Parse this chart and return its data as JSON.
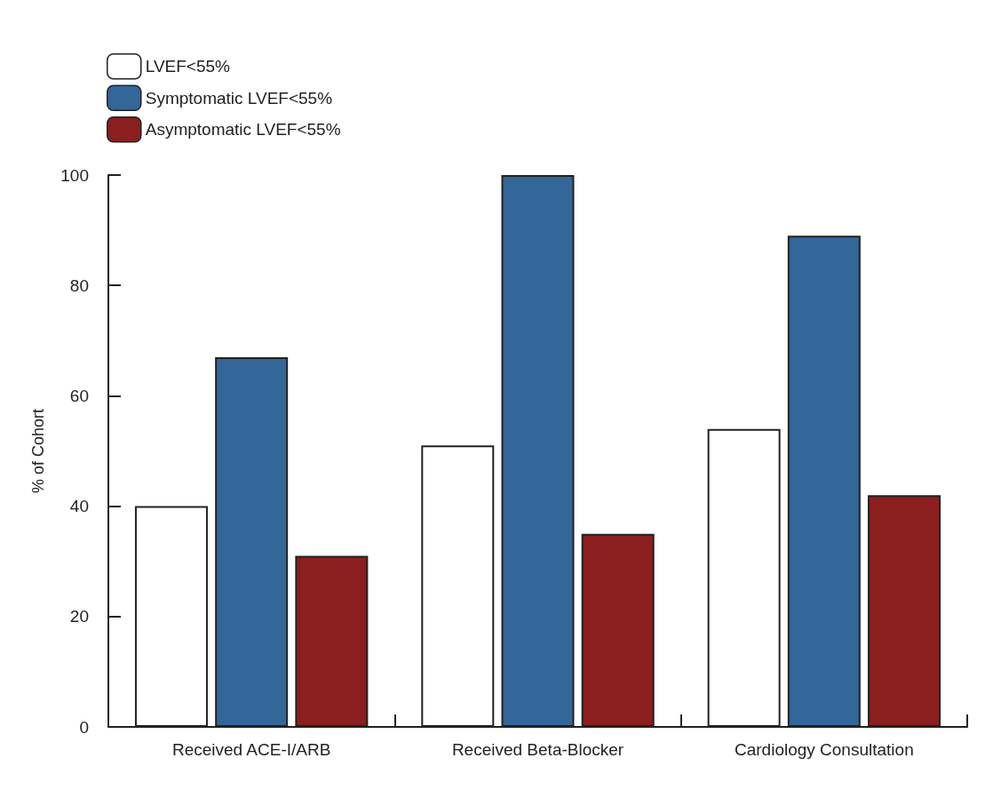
{
  "chart_data": {
    "type": "bar",
    "ylabel": "% of Cohort",
    "categories": [
      "Received ACE-I/ARB",
      "Received Beta-Blocker",
      "Cardiology Consultation"
    ],
    "series": [
      {
        "name": "LVEF<55%",
        "color": "#ffffff",
        "values": [
          40,
          51,
          54
        ]
      },
      {
        "name": "Symptomatic LVEF<55%",
        "color": "#336699",
        "values": [
          67,
          100,
          89
        ]
      },
      {
        "name": "Asymptomatic LVEF<55%",
        "color": "#8b1e1e",
        "values": [
          31,
          35,
          42
        ]
      }
    ],
    "ylim": [
      0,
      100
    ],
    "yticks": [
      0,
      20,
      40,
      60,
      80,
      100
    ],
    "grid": false,
    "legend": "top left"
  }
}
